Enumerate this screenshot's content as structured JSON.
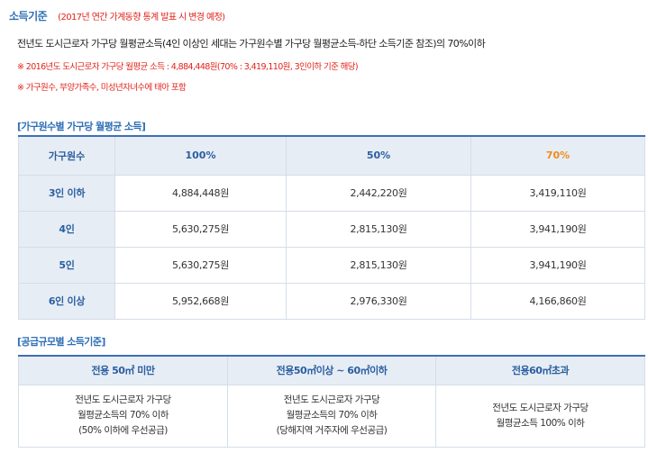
{
  "heading": {
    "title": "소득기준",
    "note": "(2017년 연간 가계동향 통계 발표 시 변경 예정)"
  },
  "description": "전년도 도시근로자 가구당 월평균소득(4인 이상인 세대는 가구원수별 가구당 월평균소득-하단 소득기준 참조)의 70%이하",
  "notes": [
    "※ 2016년도 도시근로자 가구당 월평균 소득 : 4,884,448원(70% : 3,419,110원, 3인이하 기준 해당)",
    "※ 가구원수, 부양가족수, 미성년자녀수에 태아 포함"
  ],
  "income_section": {
    "title": "[가구원수별 가구당 월평균 소득]",
    "headers": [
      "가구원수",
      "100%",
      "50%",
      "70%"
    ],
    "highlight_color": "#f08c1a",
    "rows": [
      {
        "label": "3인 이하",
        "values": [
          "4,884,448원",
          "2,442,220원",
          "3,419,110원"
        ]
      },
      {
        "label": "4인",
        "values": [
          "5,630,275원",
          "2,815,130원",
          "3,941,190원"
        ]
      },
      {
        "label": "5인",
        "values": [
          "5,630,275원",
          "2,815,130원",
          "3,941,190원"
        ]
      },
      {
        "label": "6인 이상",
        "values": [
          "5,952,668원",
          "2,976,330원",
          "4,166,860원"
        ]
      }
    ]
  },
  "supply_section": {
    "title": "[공급규모별 소득기준]",
    "headers": [
      "전용 50㎡ 미만",
      "전용50㎡이상 ~ 60㎡이하",
      "전용60㎡초과"
    ],
    "cells": [
      [
        "전년도 도시근로자 가구당",
        "월평균소득의 70% 이하",
        "(50% 이하에 우선공급)"
      ],
      [
        "전년도 도시근로자 가구당",
        "월평균소득의 70% 이하",
        "(당해지역 거주자에 우선공급)"
      ],
      [
        "전년도 도시근로자 가구당",
        "월평균소득 100% 이하"
      ]
    ]
  },
  "colors": {
    "accent_blue": "#2f6fb6",
    "note_red": "#e2231a",
    "header_bg": "#e7edf5"
  }
}
